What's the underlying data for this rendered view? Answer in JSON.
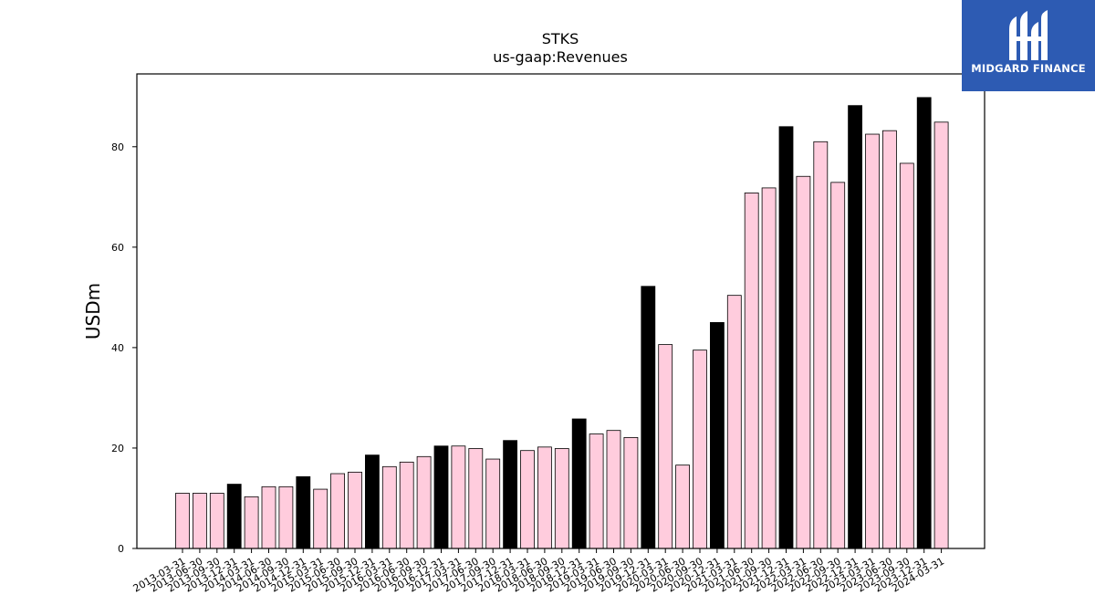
{
  "brand": {
    "logo_text": "MIDGARD FINANCE",
    "logo_color": "#2d5bb3"
  },
  "chart_data": {
    "type": "bar",
    "title": "STKS",
    "subtitle": "us-gaap:Revenues",
    "ylabel": "USDm",
    "ylim": [
      0,
      94.5
    ],
    "yticks": [
      0,
      20,
      40,
      60,
      80
    ],
    "grid": false,
    "colors": {
      "quarter": "#ffccdd",
      "annual": "#000000",
      "edge": "#000000"
    },
    "categories": [
      "2013-03-31",
      "2013-06-30",
      "2013-09-30",
      "2013-12-31",
      "2014-03-31",
      "2014-06-30",
      "2014-09-30",
      "2014-12-31",
      "2015-03-31",
      "2015-06-30",
      "2015-09-30",
      "2015-12-31",
      "2016-03-31",
      "2016-06-30",
      "2016-09-30",
      "2016-12-31",
      "2017-03-31",
      "2017-06-30",
      "2017-09-30",
      "2017-12-31",
      "2018-03-31",
      "2018-06-30",
      "2018-09-30",
      "2018-12-31",
      "2019-03-31",
      "2019-06-30",
      "2019-09-30",
      "2019-12-31",
      "2020-03-31",
      "2020-06-30",
      "2020-09-30",
      "2020-12-31",
      "2021-03-31",
      "2021-06-30",
      "2021-09-30",
      "2021-12-31",
      "2022-03-31",
      "2022-06-30",
      "2022-09-30",
      "2022-12-31",
      "2023-03-31",
      "2023-06-30",
      "2023-09-30",
      "2023-12-31",
      "2024-03-31"
    ],
    "values": [
      11.0,
      11.0,
      11.0,
      12.8,
      10.3,
      12.3,
      12.3,
      14.3,
      11.8,
      14.9,
      15.2,
      18.6,
      16.3,
      17.2,
      18.3,
      20.4,
      20.4,
      19.9,
      17.8,
      21.5,
      19.5,
      20.2,
      19.9,
      25.8,
      22.8,
      23.5,
      22.1,
      52.2,
      40.6,
      16.6,
      39.5,
      45.0,
      50.4,
      70.8,
      71.8,
      84.0,
      74.1,
      81.0,
      72.9,
      88.2,
      82.5,
      83.2,
      76.7,
      89.8,
      84.9
    ],
    "annual": [
      false,
      false,
      false,
      true,
      false,
      false,
      false,
      true,
      false,
      false,
      false,
      true,
      false,
      false,
      false,
      true,
      false,
      false,
      false,
      true,
      false,
      false,
      false,
      true,
      false,
      false,
      false,
      true,
      false,
      false,
      false,
      true,
      false,
      false,
      false,
      true,
      false,
      false,
      false,
      true,
      false,
      false,
      false,
      true,
      false
    ]
  }
}
